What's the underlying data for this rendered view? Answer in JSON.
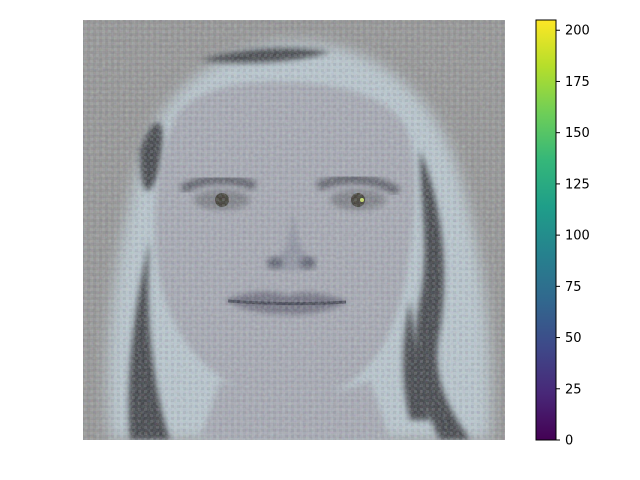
{
  "chart_data": {
    "type": "heatmap",
    "title": "",
    "xlabel": "",
    "ylabel": "",
    "axes_visible": false,
    "image_description": "RGB image of a reconstructed face on a grey background",
    "colorbar": {
      "colormap": "viridis",
      "vmin": 0,
      "vmax": 205,
      "ticks": [
        0,
        25,
        50,
        75,
        100,
        125,
        150,
        175,
        200
      ],
      "tick_labels": [
        "0",
        "25",
        "50",
        "75",
        "100",
        "125",
        "150",
        "175",
        "200"
      ]
    },
    "colors": {
      "background_grey": "#949494",
      "face_tone": "#a6a9b3",
      "hair_dark": "#3c3f45",
      "hair_light": "#b9c7cf"
    },
    "viridis_stops": [
      "#440154",
      "#482878",
      "#3e4989",
      "#31688e",
      "#26828e",
      "#1f9e89",
      "#35b779",
      "#6ece58",
      "#b5de2b",
      "#fde725"
    ]
  }
}
